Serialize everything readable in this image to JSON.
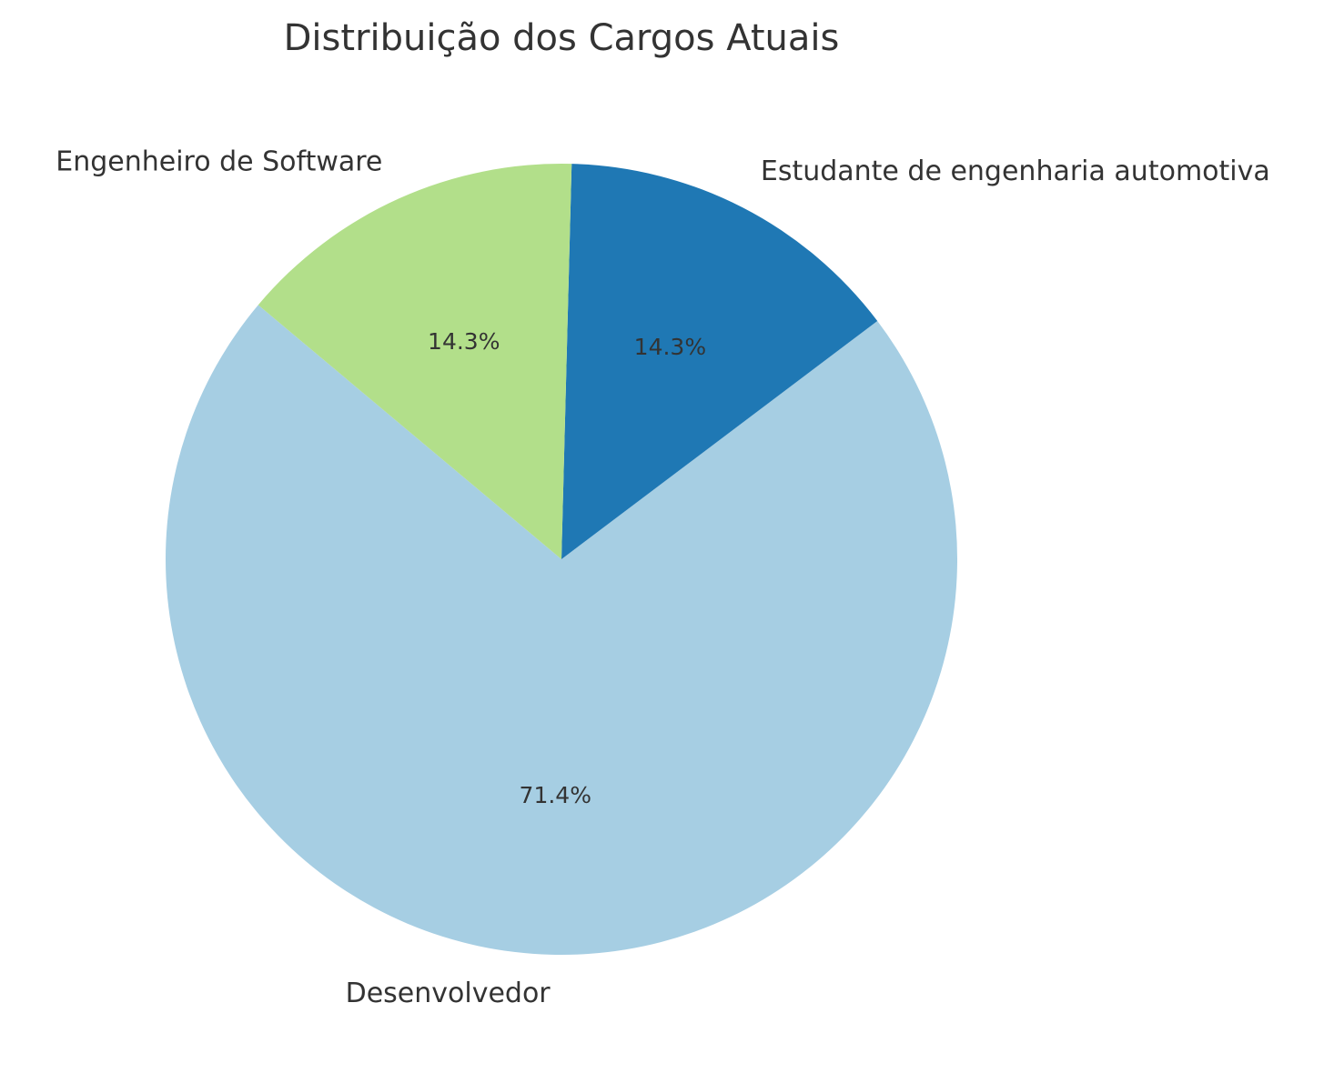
{
  "chart_data": {
    "type": "pie",
    "title": "Distribuição dos Cargos Atuais",
    "slices": [
      {
        "label": "Desenvolvedor",
        "value": 71.4,
        "pct_label": "71.4%",
        "color": "#a6cee3"
      },
      {
        "label": "Estudante de engenharia automotiva",
        "value": 14.3,
        "pct_label": "14.3%",
        "color": "#1f78b4"
      },
      {
        "label": "Engenheiro de Software",
        "value": 14.3,
        "pct_label": "14.3%",
        "color": "#b2df8a"
      }
    ],
    "legend": "none"
  }
}
